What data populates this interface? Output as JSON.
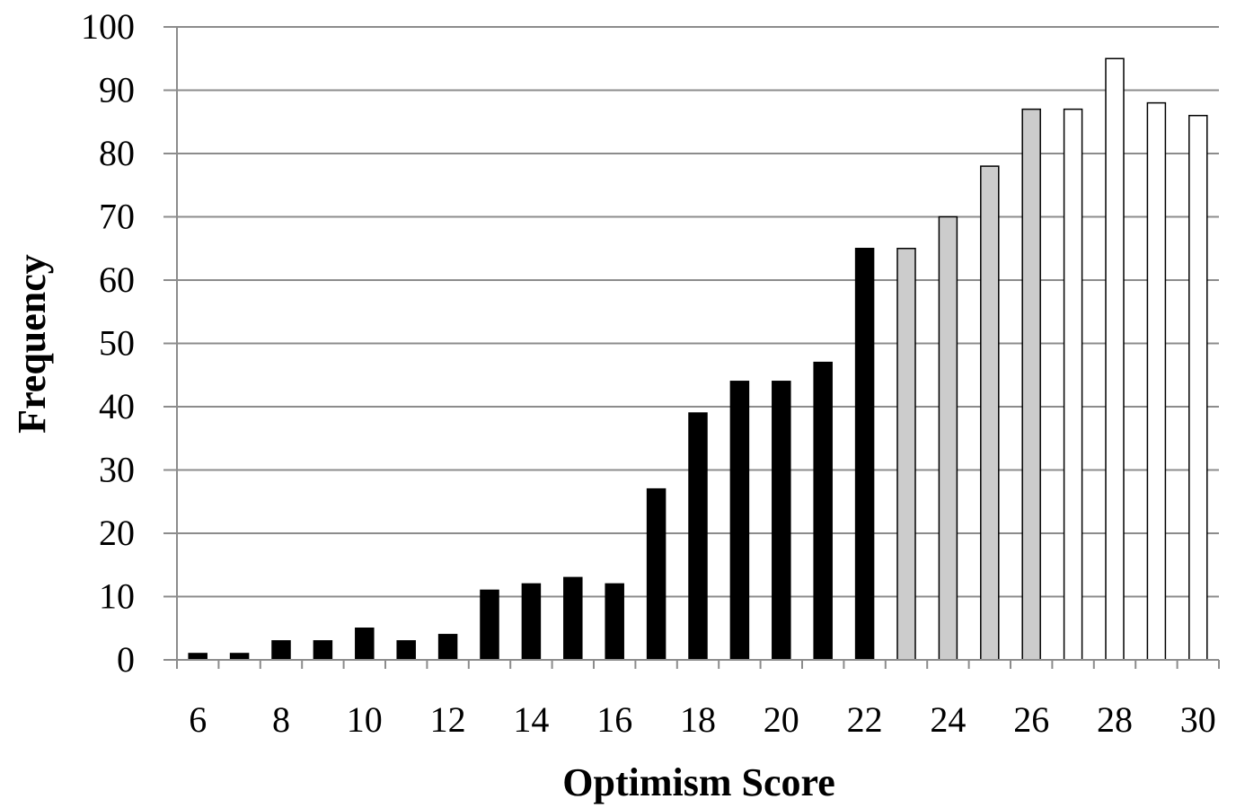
{
  "chart_data": {
    "type": "bar",
    "title": "",
    "xlabel": "Optimism Score",
    "ylabel": "Frequency",
    "ylim": [
      0,
      100
    ],
    "y_ticks": [
      "0",
      "10",
      "20",
      "30",
      "40",
      "50",
      "60",
      "70",
      "80",
      "90",
      "100"
    ],
    "x_tick_labels": [
      "6",
      "8",
      "10",
      "12",
      "14",
      "16",
      "18",
      "20",
      "22",
      "24",
      "26",
      "28",
      "30"
    ],
    "categories": [
      6,
      7,
      8,
      9,
      10,
      11,
      12,
      13,
      14,
      15,
      16,
      17,
      18,
      19,
      20,
      21,
      22,
      23,
      24,
      25,
      26,
      27,
      28,
      29,
      30
    ],
    "values": [
      1,
      1,
      3,
      3,
      5,
      3,
      4,
      11,
      12,
      13,
      12,
      27,
      39,
      44,
      44,
      47,
      65,
      65,
      70,
      78,
      87,
      87,
      95,
      88,
      86
    ],
    "groups": [
      {
        "from": 6,
        "to": 22,
        "color": "#000000"
      },
      {
        "from": 23,
        "to": 26,
        "color": "#cccccc"
      },
      {
        "from": 27,
        "to": 30,
        "color": "#ffffff"
      }
    ],
    "grid": true,
    "legend": "none"
  }
}
